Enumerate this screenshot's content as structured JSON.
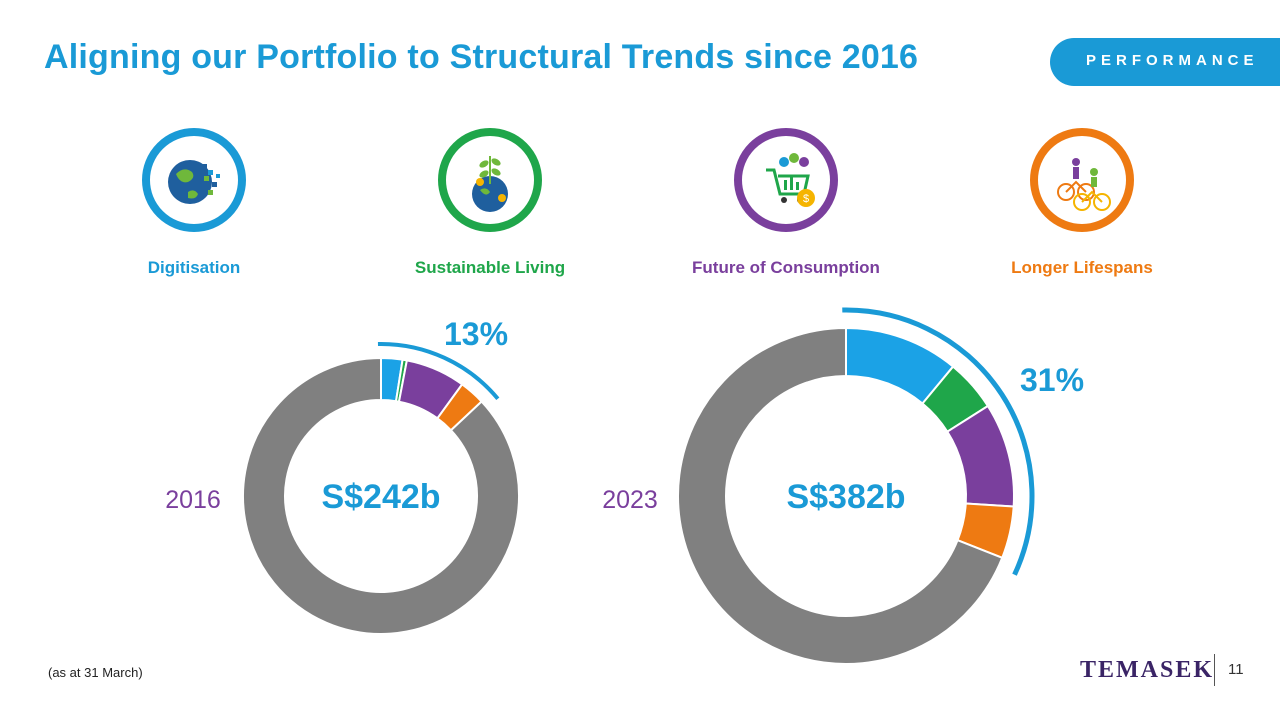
{
  "title": "Aligning our Portfolio to Structural Trends since 2016",
  "section_tag": "PERFORMANCE",
  "themes": [
    {
      "label": "Digitisation",
      "color": "#1a9ad6",
      "icon": "digital-globe-icon"
    },
    {
      "label": "Sustainable  Living",
      "color": "#1fa64a",
      "icon": "plant-globe-icon"
    },
    {
      "label": "Future of Consumption",
      "color": "#7a3f9d",
      "icon": "shopping-cart-icon"
    },
    {
      "label": "Longer Lifespans",
      "color": "#ee7a12",
      "icon": "cyclists-icon"
    }
  ],
  "chart_data": [
    {
      "type": "donut",
      "year": "2016",
      "center": "S$242b",
      "highlight": "13%",
      "segments": [
        {
          "value": 2.5,
          "color": "#1ba2e6"
        },
        {
          "value": 0.5,
          "color": "#1fa64a"
        },
        {
          "value": 7.0,
          "color": "#7a3f9d"
        },
        {
          "value": 3.0,
          "color": "#ee7a12"
        },
        {
          "value": 87.0,
          "color": "#808080"
        }
      ]
    },
    {
      "type": "donut",
      "year": "2023",
      "center": "S$382b",
      "highlight": "31%",
      "segments": [
        {
          "value": 11.0,
          "color": "#1ba2e6"
        },
        {
          "value": 5.0,
          "color": "#1fa64a"
        },
        {
          "value": 10.0,
          "color": "#7a3f9d"
        },
        {
          "value": 5.0,
          "color": "#ee7a12"
        },
        {
          "value": 69.0,
          "color": "#808080"
        }
      ]
    }
  ],
  "footnote": "(as at 31 March)",
  "brand": "TEMASEK",
  "page_number": "11"
}
